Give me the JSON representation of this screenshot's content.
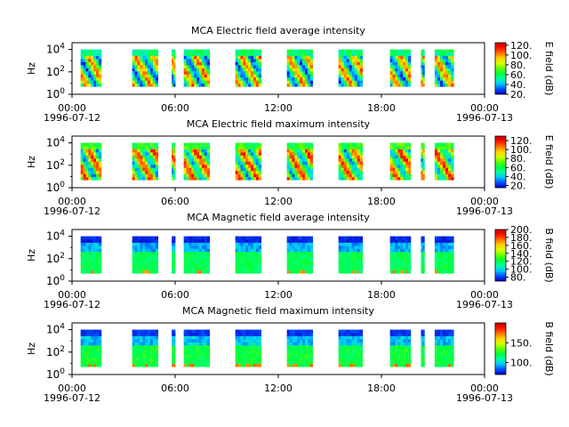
{
  "chart_data": [
    {
      "type": "heatmap",
      "title": "MCA  Electric field average intensity",
      "ylabel": "Hz",
      "ylim_log10": [
        0,
        4.6
      ],
      "yticks": [
        {
          "exp": 0,
          "base": "10",
          "sup": "0"
        },
        {
          "exp": 2,
          "base": "10",
          "sup": "2"
        },
        {
          "exp": 4,
          "base": "10",
          "sup": "4"
        }
      ],
      "xlim_hours": [
        0,
        24
      ],
      "xticks": [
        {
          "h": 0,
          "time": "00:00",
          "date": "1996-07-12"
        },
        {
          "h": 6,
          "time": "06:00",
          "date": ""
        },
        {
          "h": 12,
          "time": "12:00",
          "date": ""
        },
        {
          "h": 18,
          "time": "18:00",
          "date": ""
        },
        {
          "h": 24,
          "time": "00:00",
          "date": "1996-07-13"
        }
      ],
      "colorbar": {
        "label": "E field (dB)",
        "range": [
          20,
          125
        ],
        "ticks": [
          20,
          40,
          60,
          80,
          100,
          120
        ],
        "ticklabels": [
          "20.",
          "40.",
          "60.",
          "80.",
          "100.",
          "120."
        ]
      },
      "data_intervals_hours": [
        [
          0.5,
          1.7
        ],
        [
          3.5,
          5.0
        ],
        [
          5.8,
          6.0
        ],
        [
          6.5,
          8.0
        ],
        [
          9.5,
          11.0
        ],
        [
          12.5,
          14.0
        ],
        [
          15.5,
          16.9
        ],
        [
          18.5,
          19.7
        ],
        [
          20.3,
          20.5
        ],
        [
          21.1,
          22.2
        ]
      ],
      "freq_range_log10": [
        0.7,
        4.0
      ],
      "level_range_db": [
        30,
        125
      ],
      "profile": "electric"
    },
    {
      "type": "heatmap",
      "title": "MCA  Electric field maximum intensity",
      "ylabel": "Hz",
      "ylim_log10": [
        0,
        4.6
      ],
      "yticks": [
        {
          "exp": 0,
          "base": "10",
          "sup": "0"
        },
        {
          "exp": 2,
          "base": "10",
          "sup": "2"
        },
        {
          "exp": 4,
          "base": "10",
          "sup": "4"
        }
      ],
      "xlim_hours": [
        0,
        24
      ],
      "xticks": [
        {
          "h": 0,
          "time": "00:00",
          "date": "1996-07-12"
        },
        {
          "h": 6,
          "time": "06:00",
          "date": ""
        },
        {
          "h": 12,
          "time": "12:00",
          "date": ""
        },
        {
          "h": 18,
          "time": "18:00",
          "date": ""
        },
        {
          "h": 24,
          "time": "00:00",
          "date": "1996-07-13"
        }
      ],
      "colorbar": {
        "label": "E field (dB)",
        "range": [
          15,
          130
        ],
        "ticks": [
          20,
          40,
          60,
          80,
          100,
          120
        ],
        "ticklabels": [
          "20.",
          "40.",
          "60.",
          "80.",
          "100.",
          "120."
        ]
      },
      "data_intervals_hours": [
        [
          0.5,
          1.7
        ],
        [
          3.5,
          5.0
        ],
        [
          5.8,
          6.0
        ],
        [
          6.5,
          8.0
        ],
        [
          9.5,
          11.0
        ],
        [
          12.5,
          14.0
        ],
        [
          15.5,
          16.9
        ],
        [
          18.5,
          19.7
        ],
        [
          20.3,
          20.5
        ],
        [
          21.1,
          22.2
        ]
      ],
      "freq_range_log10": [
        0.7,
        4.0
      ],
      "level_range_db": [
        35,
        130
      ],
      "profile": "electric"
    },
    {
      "type": "heatmap",
      "title": "MCA  Magnetic field average intensity",
      "ylabel": "Hz",
      "ylim_log10": [
        0,
        4.6
      ],
      "yticks": [
        {
          "exp": 0,
          "base": "10",
          "sup": "0"
        },
        {
          "exp": 2,
          "base": "10",
          "sup": "2"
        },
        {
          "exp": 4,
          "base": "10",
          "sup": "4"
        }
      ],
      "xlim_hours": [
        0,
        24
      ],
      "xticks": [
        {
          "h": 0,
          "time": "00:00",
          "date": "1996-07-12"
        },
        {
          "h": 6,
          "time": "06:00",
          "date": ""
        },
        {
          "h": 12,
          "time": "12:00",
          "date": ""
        },
        {
          "h": 18,
          "time": "18:00",
          "date": ""
        },
        {
          "h": 24,
          "time": "00:00",
          "date": "1996-07-13"
        }
      ],
      "colorbar": {
        "label": "B field (dB)",
        "range": [
          70,
          200
        ],
        "ticks": [
          80,
          100,
          120,
          140,
          160,
          180,
          200
        ],
        "ticklabels": [
          "80.",
          "100.",
          "120.",
          "140.",
          "160.",
          "180.",
          "200."
        ]
      },
      "data_intervals_hours": [
        [
          0.5,
          1.7
        ],
        [
          3.5,
          5.0
        ],
        [
          5.8,
          6.0
        ],
        [
          6.5,
          8.0
        ],
        [
          9.5,
          11.0
        ],
        [
          12.5,
          14.0
        ],
        [
          15.5,
          16.9
        ],
        [
          18.5,
          19.7
        ],
        [
          20.3,
          20.5
        ],
        [
          21.1,
          22.2
        ]
      ],
      "freq_range_log10": [
        0.7,
        4.0
      ],
      "level_range_db": [
        80,
        170
      ],
      "profile": "magnetic"
    },
    {
      "type": "heatmap",
      "title": "MCA  Magnetic field maximum intensity",
      "ylabel": "Hz",
      "ylim_log10": [
        0,
        4.6
      ],
      "yticks": [
        {
          "exp": 0,
          "base": "10",
          "sup": "0"
        },
        {
          "exp": 2,
          "base": "10",
          "sup": "2"
        },
        {
          "exp": 4,
          "base": "10",
          "sup": "4"
        }
      ],
      "xlim_hours": [
        0,
        24
      ],
      "xticks": [
        {
          "h": 0,
          "time": "00:00",
          "date": "1996-07-12"
        },
        {
          "h": 6,
          "time": "06:00",
          "date": ""
        },
        {
          "h": 12,
          "time": "12:00",
          "date": ""
        },
        {
          "h": 18,
          "time": "18:00",
          "date": ""
        },
        {
          "h": 24,
          "time": "00:00",
          "date": "1996-07-13"
        }
      ],
      "colorbar": {
        "label": "B field (dB)",
        "range": [
          70,
          200
        ],
        "ticks": [
          100,
          150
        ],
        "ticklabels": [
          "100.",
          "150."
        ]
      },
      "data_intervals_hours": [
        [
          0.5,
          1.7
        ],
        [
          3.5,
          5.0
        ],
        [
          5.8,
          6.0
        ],
        [
          6.5,
          8.0
        ],
        [
          9.5,
          11.0
        ],
        [
          12.5,
          14.0
        ],
        [
          15.5,
          16.9
        ],
        [
          18.5,
          19.7
        ],
        [
          20.3,
          20.5
        ],
        [
          21.1,
          22.2
        ]
      ],
      "freq_range_log10": [
        0.7,
        4.0
      ],
      "level_range_db": [
        85,
        180
      ],
      "profile": "magnetic"
    }
  ],
  "colormap": [
    "#0000c8",
    "#0050ff",
    "#00c8ff",
    "#00ffa0",
    "#00ff40",
    "#60ff00",
    "#d8ff00",
    "#ffd000",
    "#ff7000",
    "#ff1000",
    "#c00000"
  ]
}
